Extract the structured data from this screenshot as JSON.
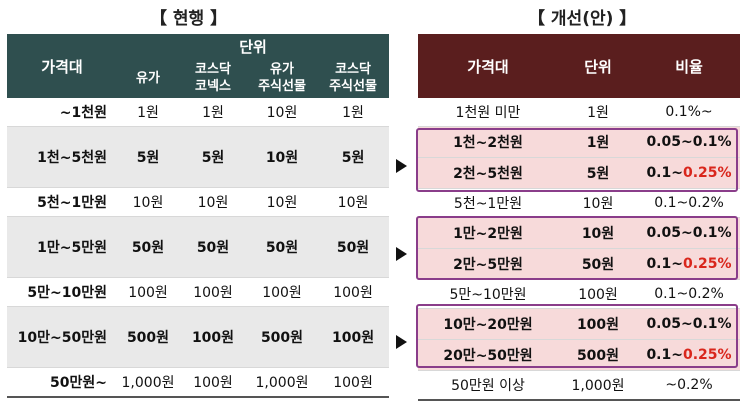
{
  "titles": {
    "current": "【 현행 】",
    "improved": "【 개선(안) 】"
  },
  "current": {
    "header": {
      "price": "가격대",
      "unit": "단위",
      "cols": [
        "유가",
        "코스닥\n코넥스",
        "유가\n주식선물",
        "코스닥\n주식선물"
      ]
    },
    "rows": [
      {
        "range": "~1천원",
        "v": [
          "1원",
          "1원",
          "10원",
          "1원"
        ]
      },
      {
        "range": "1천~5천원",
        "v": [
          "5원",
          "5원",
          "10원",
          "5원"
        ]
      },
      {
        "range": "5천~1만원",
        "v": [
          "10원",
          "10원",
          "10원",
          "10원"
        ]
      },
      {
        "range": "1만~5만원",
        "v": [
          "50원",
          "50원",
          "50원",
          "50원"
        ]
      },
      {
        "range": "5만~10만원",
        "v": [
          "100원",
          "100원",
          "100원",
          "100원"
        ]
      },
      {
        "range": "10만~50만원",
        "v": [
          "500원",
          "100원",
          "500원",
          "100원"
        ]
      },
      {
        "range": "50만원~",
        "v": [
          "1,000원",
          "100원",
          "1,000원",
          "100원"
        ]
      }
    ]
  },
  "improved": {
    "header": {
      "price": "가격대",
      "unit": "단위",
      "ratio": "비율"
    },
    "rows": [
      {
        "range": "1천원 미만",
        "unit": "1원",
        "ratio": "0.1%~"
      },
      {
        "range": "1천~2천원",
        "unit": "1원",
        "ratio": "0.05~0.1%"
      },
      {
        "range": "2천~5천원",
        "unit": "5원",
        "ratio_a": "0.1~",
        "ratio_b": "0.25%"
      },
      {
        "range": "5천~1만원",
        "unit": "10원",
        "ratio": "0.1~0.2%"
      },
      {
        "range": "1만~2만원",
        "unit": "10원",
        "ratio": "0.05~0.1%"
      },
      {
        "range": "2만~5만원",
        "unit": "50원",
        "ratio_a": "0.1~",
        "ratio_b": "0.25%"
      },
      {
        "range": "5만~10만원",
        "unit": "100원",
        "ratio": "0.1~0.2%"
      },
      {
        "range": "10만~20만원",
        "unit": "100원",
        "ratio": "0.05~0.1%"
      },
      {
        "range": "20만~50만원",
        "unit": "500원",
        "ratio_a": "0.1~",
        "ratio_b": "0.25%"
      },
      {
        "range": "50만원 이상",
        "unit": "1,000원",
        "ratio": "~0.2%"
      }
    ]
  },
  "colors": {
    "current_header": "#2f4f4f",
    "improved_header": "#5a1e1e",
    "highlight": "#d9261c",
    "group_border": "#8a3d8a"
  }
}
